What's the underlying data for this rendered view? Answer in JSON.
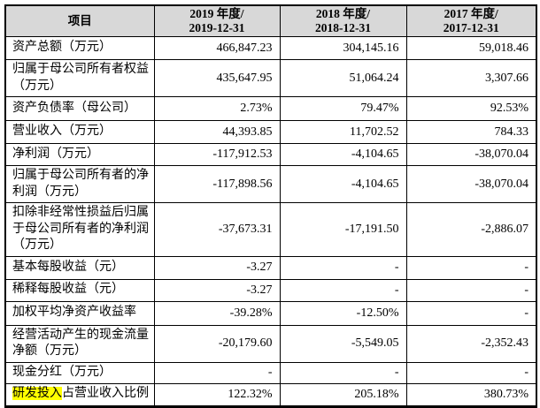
{
  "colors": {
    "header_bg": "#d8d8d8",
    "highlight": "#ffff00",
    "border": "#000000",
    "text": "#000000",
    "page_bg": "#ffffff"
  },
  "table": {
    "header": {
      "item_label": "项目",
      "columns": [
        {
          "line1": "2019 年度/",
          "line2": "2019-12-31"
        },
        {
          "line1": "2018 年度/",
          "line2": "2018-12-31"
        },
        {
          "line1": "2017 年度/",
          "line2": "2017-12-31"
        }
      ]
    },
    "rows": [
      {
        "label_segments": [
          {
            "text": "资产总额（万元）",
            "highlight": false
          }
        ],
        "values": [
          "466,847.23",
          "304,145.16",
          "59,018.46"
        ]
      },
      {
        "label_segments": [
          {
            "text": "归属于母公司所有者权益（万元）",
            "highlight": false
          }
        ],
        "values": [
          "435,647.95",
          "51,064.24",
          "3,307.66"
        ]
      },
      {
        "label_segments": [
          {
            "text": "资产负债率（母公司）",
            "highlight": false
          }
        ],
        "values": [
          "2.73%",
          "79.47%",
          "92.53%"
        ]
      },
      {
        "label_segments": [
          {
            "text": "营业收入（万元）",
            "highlight": false
          }
        ],
        "values": [
          "44,393.85",
          "11,702.52",
          "784.33"
        ]
      },
      {
        "label_segments": [
          {
            "text": "净利润（万元）",
            "highlight": false
          }
        ],
        "values": [
          "-117,912.53",
          "-4,104.65",
          "-38,070.04"
        ]
      },
      {
        "label_segments": [
          {
            "text": "归属于母公司所有者的净利润（万元）",
            "highlight": false
          }
        ],
        "values": [
          "-117,898.56",
          "-4,104.65",
          "-38,070.04"
        ]
      },
      {
        "label_segments": [
          {
            "text": "扣除非经常性损益后归属于母公司所有者的净利润（万元）",
            "highlight": false
          }
        ],
        "values": [
          "-37,673.31",
          "-17,191.50",
          "-2,886.07"
        ]
      },
      {
        "label_segments": [
          {
            "text": "基本每股收益（元）",
            "highlight": false
          }
        ],
        "values": [
          "-3.27",
          "-",
          "-"
        ]
      },
      {
        "label_segments": [
          {
            "text": "稀释每股收益（元）",
            "highlight": false
          }
        ],
        "values": [
          "-3.27",
          "-",
          "-"
        ]
      },
      {
        "label_segments": [
          {
            "text": "加权平均净资产收益率",
            "highlight": false
          }
        ],
        "values": [
          "-39.28%",
          "-12.50%",
          "-"
        ]
      },
      {
        "label_segments": [
          {
            "text": "经营活动产生的现金流量净额（万元）",
            "highlight": false
          }
        ],
        "values": [
          "-20,179.60",
          "-5,549.05",
          "-2,352.43"
        ]
      },
      {
        "label_segments": [
          {
            "text": "现金分红（万元）",
            "highlight": false
          }
        ],
        "values": [
          "-",
          "-",
          "-"
        ]
      },
      {
        "label_segments": [
          {
            "text": "研发投入",
            "highlight": true
          },
          {
            "text": "占营业收入比例",
            "highlight": false
          }
        ],
        "values": [
          "122.32%",
          "205.18%",
          "380.73%"
        ]
      }
    ]
  }
}
